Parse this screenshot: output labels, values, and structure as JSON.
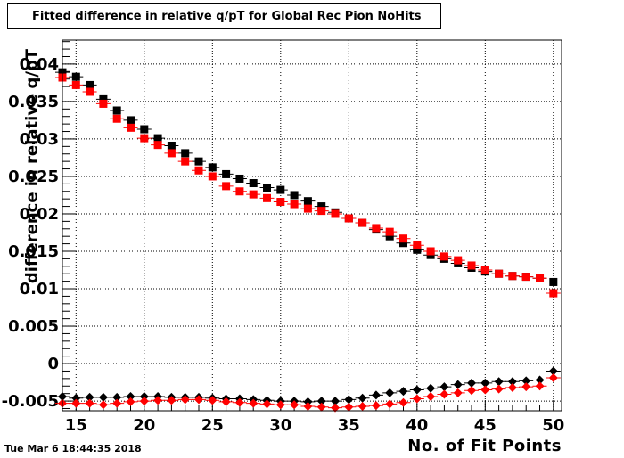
{
  "title": "Fitted difference in relative q/pT for Global Rec Pion NoHits",
  "timestamp": "Tue Mar  6 18:44:35 2018",
  "colors": {
    "series_black": "#000000",
    "series_red": "#ff0000",
    "grid": "#000000"
  },
  "chart_data": {
    "type": "scatter",
    "title": "Fitted difference in relative q/pT for Global Rec Pion NoHits",
    "xlabel": "No. of Fit Points",
    "ylabel": "difference in relative q/pT",
    "xlim": [
      14,
      50.6
    ],
    "ylim": [
      -0.0063,
      0.0432
    ],
    "grid": true,
    "x_ticks": [
      15,
      20,
      25,
      30,
      35,
      40,
      45,
      50
    ],
    "x_tick_labels": [
      "15",
      "20",
      "25",
      "30",
      "35",
      "40",
      "45",
      "50"
    ],
    "y_ticks": [
      -0.005,
      0,
      0.005,
      0.01,
      0.015,
      0.02,
      0.025,
      0.03,
      0.035,
      0.04
    ],
    "y_tick_labels": [
      "-0.005",
      "0",
      "0.005",
      "0.01",
      "0.015",
      "0.02",
      "0.025",
      "0.03",
      "0.035",
      "0.04"
    ],
    "x": [
      14,
      15,
      16,
      17,
      18,
      19,
      20,
      21,
      22,
      23,
      24,
      25,
      26,
      27,
      28,
      29,
      30,
      31,
      32,
      33,
      34,
      35,
      36,
      37,
      38,
      39,
      40,
      41,
      42,
      43,
      44,
      45,
      46,
      47,
      48,
      49,
      50
    ],
    "series": [
      {
        "marker": "square",
        "color": "#000000",
        "values": [
          0.0389,
          0.0383,
          0.0372,
          0.0353,
          0.0338,
          0.0325,
          0.0313,
          0.0301,
          0.0291,
          0.0281,
          0.027,
          0.0262,
          0.0253,
          0.0247,
          0.0241,
          0.0235,
          0.0232,
          0.0225,
          0.0217,
          0.021,
          0.0202,
          0.0194,
          0.0188,
          0.0179,
          0.017,
          0.0161,
          0.0152,
          0.0145,
          0.014,
          0.0134,
          0.0128,
          0.0123,
          0.012,
          0.0117,
          0.0116,
          0.0114,
          0.0109
        ]
      },
      {
        "marker": "square",
        "color": "#ff0000",
        "values": [
          0.0382,
          0.0372,
          0.0363,
          0.0347,
          0.0327,
          0.0315,
          0.0301,
          0.0292,
          0.0281,
          0.027,
          0.0258,
          0.025,
          0.0237,
          0.023,
          0.0226,
          0.0221,
          0.0216,
          0.0213,
          0.0207,
          0.0204,
          0.02,
          0.0194,
          0.0188,
          0.0181,
          0.0176,
          0.0167,
          0.0158,
          0.015,
          0.0143,
          0.0138,
          0.0131,
          0.0125,
          0.012,
          0.0117,
          0.0116,
          0.0114,
          0.0094
        ]
      },
      {
        "marker": "diamond",
        "color": "#000000",
        "values": [
          -0.0044,
          -0.0046,
          -0.0045,
          -0.0045,
          -0.0045,
          -0.0044,
          -0.0044,
          -0.0044,
          -0.0045,
          -0.0045,
          -0.0045,
          -0.0046,
          -0.0047,
          -0.0047,
          -0.0048,
          -0.0049,
          -0.005,
          -0.005,
          -0.0051,
          -0.005,
          -0.005,
          -0.0048,
          -0.0046,
          -0.0042,
          -0.0039,
          -0.0037,
          -0.0035,
          -0.0033,
          -0.0031,
          -0.0028,
          -0.0026,
          -0.0026,
          -0.0024,
          -0.0024,
          -0.0023,
          -0.0022,
          -0.001
        ]
      },
      {
        "marker": "diamond",
        "color": "#ff0000",
        "values": [
          -0.0053,
          -0.0053,
          -0.0053,
          -0.0055,
          -0.0053,
          -0.0051,
          -0.005,
          -0.0049,
          -0.0049,
          -0.0048,
          -0.0048,
          -0.0049,
          -0.0051,
          -0.0052,
          -0.0053,
          -0.0054,
          -0.0055,
          -0.0055,
          -0.0057,
          -0.0058,
          -0.0059,
          -0.0058,
          -0.0057,
          -0.0056,
          -0.0054,
          -0.0052,
          -0.0047,
          -0.0044,
          -0.0041,
          -0.0039,
          -0.0036,
          -0.0035,
          -0.0034,
          -0.0032,
          -0.0031,
          -0.003,
          -0.0019
        ]
      }
    ]
  }
}
